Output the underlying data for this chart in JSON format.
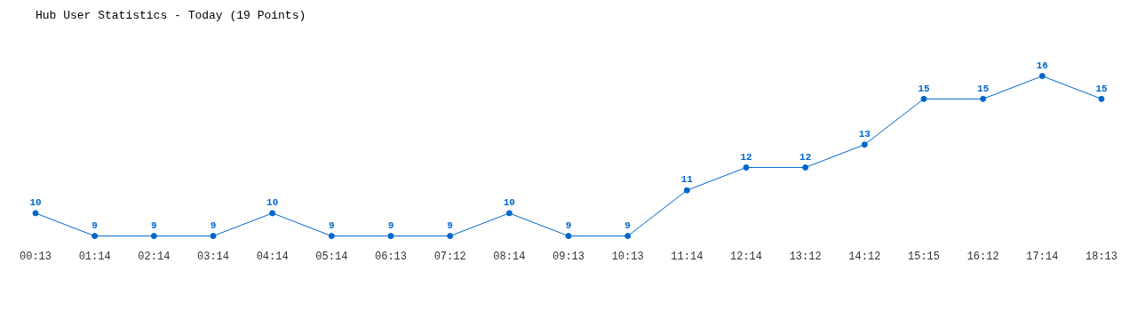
{
  "chart_data": {
    "type": "line",
    "title": "Hub User Statistics - Today (19 Points)",
    "categories": [
      "00:13",
      "01:14",
      "02:14",
      "03:14",
      "04:14",
      "05:14",
      "06:13",
      "07:12",
      "08:14",
      "09:13",
      "10:13",
      "11:14",
      "12:14",
      "13:12",
      "14:12",
      "15:15",
      "16:12",
      "17:14",
      "18:13"
    ],
    "series": [
      {
        "color": "#0066cc",
        "values": [
          10,
          9,
          9,
          9,
          10,
          9,
          9,
          9,
          10,
          9,
          9,
          11,
          12,
          12,
          13,
          15,
          15,
          16,
          15
        ]
      }
    ],
    "data_labels": true,
    "grid": false,
    "legend": false,
    "marker": "circle",
    "line_style": "solid"
  }
}
